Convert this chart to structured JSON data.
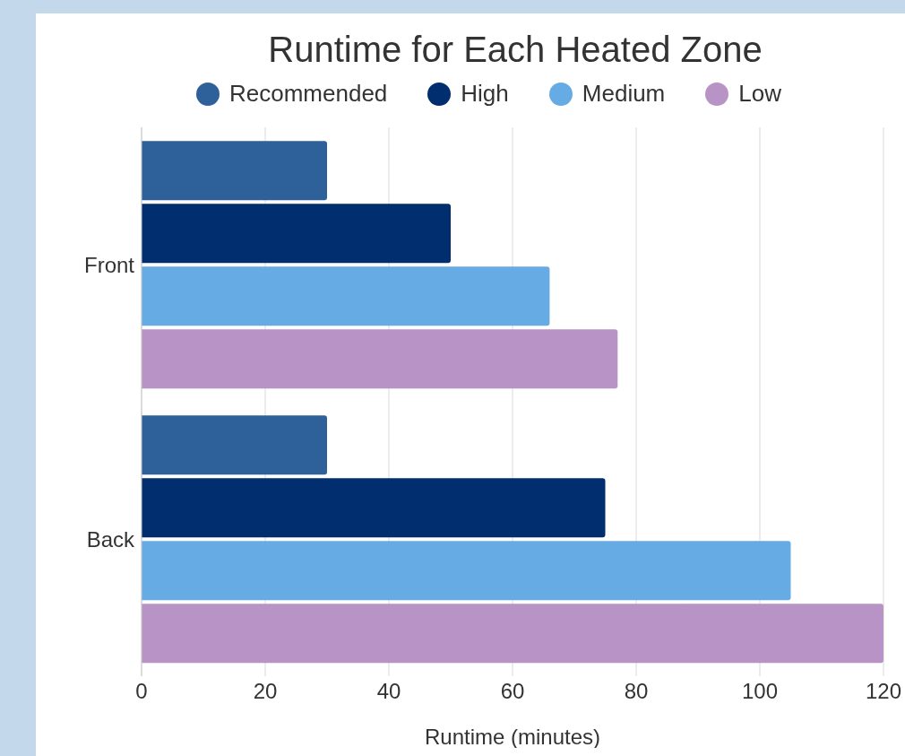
{
  "chart_data": {
    "type": "bar",
    "orientation": "horizontal",
    "title": "Runtime for Each Heated Zone",
    "xlabel": "Runtime (minutes)",
    "categories": [
      "Front",
      "Back"
    ],
    "series": [
      {
        "name": "Recommended",
        "color": "#2e6099",
        "values": [
          30,
          30
        ]
      },
      {
        "name": "High",
        "color": "#002e6e",
        "values": [
          50,
          75
        ]
      },
      {
        "name": "Medium",
        "color": "#67abe5",
        "values": [
          66,
          105
        ]
      },
      {
        "name": "Low",
        "color": "#b893c5",
        "values": [
          77,
          120
        ]
      }
    ],
    "xlim": [
      0,
      120
    ],
    "xticks": [
      0,
      20,
      40,
      60,
      80,
      100,
      120
    ],
    "grid": "x",
    "legend": "top"
  }
}
